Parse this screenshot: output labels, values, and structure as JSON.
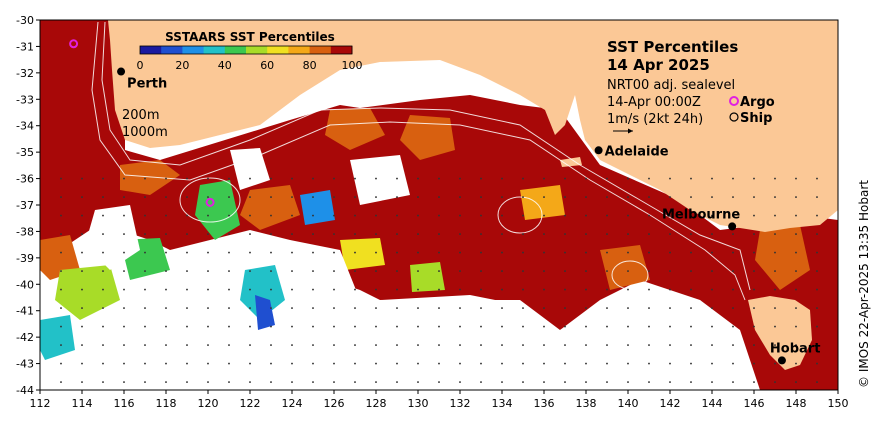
{
  "legend": {
    "title": "SSTAARS SST Percentiles",
    "ticks": [
      "0",
      "20",
      "40",
      "60",
      "80",
      "100"
    ],
    "colors": [
      "#1a1aa0",
      "#1f4fd0",
      "#1e90e8",
      "#22c1c8",
      "#3cc850",
      "#a8dc28",
      "#f0e020",
      "#f4a818",
      "#d86010",
      "#a80808"
    ]
  },
  "header": {
    "title": "SST Percentiles",
    "date": "14 Apr 2025",
    "product": "NRT00 adj. sealevel",
    "time": "14-Apr 00:00Z",
    "argo_label": "Argo",
    "ship_label": "Ship",
    "current_scale": "1m/s (2kt 24h)"
  },
  "contours": {
    "depth_1": "200m",
    "depth_2": "1000m"
  },
  "places": [
    {
      "name": "Perth",
      "lon": 115.86,
      "lat": -31.95
    },
    {
      "name": "Adelaide",
      "lon": 138.6,
      "lat": -34.93
    },
    {
      "name": "Melbourne",
      "lon": 144.96,
      "lat": -37.81
    },
    {
      "name": "Hobart",
      "lon": 147.33,
      "lat": -42.88
    }
  ],
  "argo_floats": [
    {
      "lon": 113.6,
      "lat": -30.9
    },
    {
      "lon": 120.1,
      "lat": -36.9
    }
  ],
  "axes": {
    "x_ticks": [
      "112",
      "114",
      "116",
      "118",
      "120",
      "122",
      "124",
      "126",
      "128",
      "130",
      "132",
      "134",
      "136",
      "138",
      "140",
      "142",
      "144",
      "146",
      "148",
      "150"
    ],
    "y_ticks": [
      "-30",
      "-31",
      "-32",
      "-33",
      "-34",
      "-35",
      "-36",
      "-37",
      "-38",
      "-39",
      "-40",
      "-41",
      "-42",
      "-43",
      "-44"
    ],
    "lon_range": [
      112,
      150
    ],
    "lat_range": [
      -30,
      -44
    ]
  },
  "credit": "© IMOS 22-Apr-2025 13:35 Hobart",
  "colors": {
    "land": "#fbc896",
    "ocean_hot": "#a80808",
    "ocean_warm": "#d86010",
    "no_data": "#ffffff"
  }
}
